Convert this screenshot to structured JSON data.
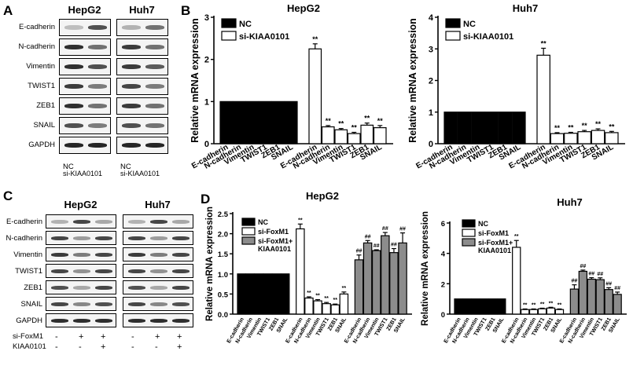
{
  "panel_labels": {
    "A": "A",
    "B": "B",
    "C": "C",
    "D": "D"
  },
  "western_A": {
    "cell_lines": [
      "HepG2",
      "Huh7"
    ],
    "proteins": [
      "E-cadherin",
      "N-cadherin",
      "Vimentin",
      "TWIST1",
      "ZEB1",
      "SNAIL",
      "GAPDH"
    ],
    "lanes": [
      "NC",
      "si-KIAA0101"
    ]
  },
  "western_C": {
    "cell_lines": [
      "HepG2",
      "Huh7"
    ],
    "proteins": [
      "E-cadherin",
      "N-cadherin",
      "Vimentin",
      "TWIST1",
      "ZEB1",
      "SNAIL",
      "GAPDH"
    ],
    "conditions": [
      {
        "name": "si-FoxM1",
        "marks": [
          "-",
          "+",
          "+",
          "-",
          "+",
          "+"
        ]
      },
      {
        "name": "KIAA0101",
        "marks": [
          "-",
          "-",
          "+",
          "-",
          "-",
          "+"
        ]
      }
    ]
  },
  "colors": {
    "nc": "#000000",
    "si": "#ffffff",
    "rescue": "#8c8c8c",
    "band": "#1a1a1a"
  },
  "chart_data": [
    {
      "id": "B-HepG2",
      "type": "bar",
      "title": "HepG2",
      "xlabel": "",
      "ylabel": "Relative mRNA expression",
      "ylim": [
        0,
        3
      ],
      "yticks": [
        0,
        1,
        2,
        3
      ],
      "categories": [
        "E-cadherin",
        "N-cadherin",
        "Vimentin",
        "TWIST1",
        "ZEB1",
        "SNAIL"
      ],
      "series": [
        {
          "name": "NC",
          "color": "#000000",
          "values": [
            1,
            1,
            1,
            1,
            1,
            1
          ],
          "errors": [
            0,
            0,
            0,
            0,
            0,
            0
          ],
          "marks": [
            "",
            "",
            "",
            "",
            "",
            ""
          ]
        },
        {
          "name": "si-KIAA0101",
          "color": "#ffffff",
          "values": [
            2.25,
            0.4,
            0.33,
            0.24,
            0.44,
            0.38
          ],
          "errors": [
            0.12,
            0.03,
            0.03,
            0.03,
            0.05,
            0.05
          ],
          "marks": [
            "**",
            "**",
            "**",
            "**",
            "**",
            "**"
          ]
        }
      ]
    },
    {
      "id": "B-Huh7",
      "type": "bar",
      "title": "Huh7",
      "xlabel": "",
      "ylabel": "Relative mRNA expression",
      "ylim": [
        0,
        4
      ],
      "yticks": [
        0,
        1,
        2,
        3,
        4
      ],
      "categories": [
        "E-cadherin",
        "N-cadherin",
        "Vimentin",
        "TWIST1",
        "ZEB1",
        "SNAIL"
      ],
      "series": [
        {
          "name": "NC",
          "color": "#000000",
          "values": [
            1,
            1,
            1,
            1,
            1,
            1
          ],
          "errors": [
            0,
            0,
            0,
            0,
            0,
            0
          ],
          "marks": [
            "",
            "",
            "",
            "",
            "",
            ""
          ]
        },
        {
          "name": "si-KIAA0101",
          "color": "#ffffff",
          "values": [
            2.8,
            0.32,
            0.33,
            0.38,
            0.42,
            0.35
          ],
          "errors": [
            0.22,
            0.03,
            0.03,
            0.04,
            0.05,
            0.04
          ],
          "marks": [
            "**",
            "**",
            "**",
            "**",
            "**",
            "**"
          ]
        }
      ]
    },
    {
      "id": "D-HepG2",
      "type": "bar",
      "title": "HepG2",
      "xlabel": "",
      "ylabel": "Relative mRNA expression",
      "ylim": [
        0,
        2.5
      ],
      "yticks": [
        0,
        0.5,
        1.0,
        1.5,
        2.0,
        2.5
      ],
      "categories": [
        "E-cadherin",
        "N-cadherin",
        "Vimentin",
        "TWIST1",
        "ZEB1",
        "SNAIL"
      ],
      "series": [
        {
          "name": "NC",
          "color": "#000000",
          "values": [
            1,
            1,
            1,
            1,
            1,
            1
          ],
          "errors": [
            0,
            0,
            0,
            0,
            0,
            0
          ],
          "marks": [
            "",
            "",
            "",
            "",
            "",
            ""
          ]
        },
        {
          "name": "si-FoxM1",
          "color": "#ffffff",
          "values": [
            2.12,
            0.4,
            0.33,
            0.26,
            0.23,
            0.5
          ],
          "errors": [
            0.12,
            0.03,
            0.03,
            0.03,
            0.02,
            0.05
          ],
          "marks": [
            "**",
            "**",
            "**",
            "**",
            "**",
            "**"
          ]
        },
        {
          "name": "si-FoxM1+\nKIAA0101",
          "color": "#8c8c8c",
          "values": [
            1.35,
            1.77,
            1.58,
            1.95,
            1.53,
            1.77
          ],
          "errors": [
            0.12,
            0.06,
            0.02,
            0.08,
            0.1,
            0.25
          ],
          "marks": [
            "##",
            "##",
            "##",
            "##",
            "##",
            "##"
          ]
        }
      ]
    },
    {
      "id": "D-Huh7",
      "type": "bar",
      "title": "Huh7",
      "xlabel": "",
      "ylabel": "Relative mRNA expression",
      "ylim": [
        0,
        6
      ],
      "yticks": [
        0,
        2,
        4,
        6
      ],
      "categories": [
        "E-cadherin",
        "N-cadherin",
        "Vimentin",
        "TWIST1",
        "ZEB1",
        "SNAIL"
      ],
      "series": [
        {
          "name": "NC",
          "color": "#000000",
          "values": [
            1,
            1,
            1,
            1,
            1,
            1
          ],
          "errors": [
            0,
            0,
            0,
            0,
            0,
            0
          ],
          "marks": [
            "",
            "",
            "",
            "",
            "",
            ""
          ]
        },
        {
          "name": "si-FoxM1",
          "color": "#ffffff",
          "values": [
            4.4,
            0.3,
            0.3,
            0.35,
            0.4,
            0.3
          ],
          "errors": [
            0.45,
            0.04,
            0.04,
            0.04,
            0.05,
            0.04
          ],
          "marks": [
            "**",
            "**",
            "**",
            "**",
            "**",
            "**"
          ]
        },
        {
          "name": "si-FoxM1+\nKIAA0101",
          "color": "#8c8c8c",
          "values": [
            1.65,
            2.82,
            2.3,
            2.27,
            1.62,
            1.3
          ],
          "errors": [
            0.28,
            0.08,
            0.1,
            0.12,
            0.12,
            0.15
          ],
          "marks": [
            "##",
            "##",
            "##",
            "##",
            "##",
            "##"
          ]
        }
      ]
    }
  ]
}
